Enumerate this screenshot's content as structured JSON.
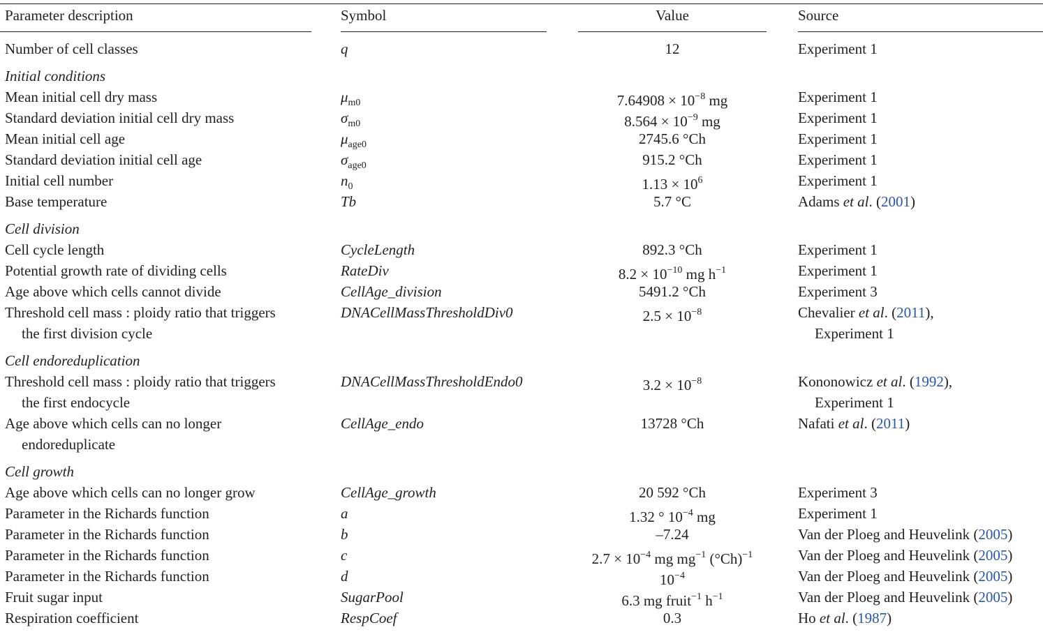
{
  "header": {
    "desc": "Parameter description",
    "symbol": "Symbol",
    "value": "Value",
    "source": "Source"
  },
  "sections": [
    {
      "title": "",
      "rows": [
        {
          "desc": [
            "Number of cell classes"
          ],
          "sym": "q",
          "sym_sub": "",
          "val": "12",
          "src": [
            [
              "Experiment 1",
              ""
            ]
          ]
        }
      ]
    },
    {
      "title": "Initial conditions",
      "rows": [
        {
          "desc": [
            "Mean initial cell dry mass"
          ],
          "sym": "μ",
          "sym_sub": "m0",
          "val": "7.64908 × 10^−8 mg",
          "src": [
            [
              "Experiment 1",
              ""
            ]
          ]
        },
        {
          "desc": [
            "Standard deviation initial cell dry mass"
          ],
          "sym": "σ",
          "sym_sub": "m0",
          "val": "8.564 × 10^−9 mg",
          "src": [
            [
              "Experiment 1",
              ""
            ]
          ]
        },
        {
          "desc": [
            "Mean initial cell age"
          ],
          "sym": "μ",
          "sym_sub": "age0",
          "val": "2745.6 °Ch",
          "src": [
            [
              "Experiment 1",
              ""
            ]
          ]
        },
        {
          "desc": [
            "Standard deviation initial cell age"
          ],
          "sym": "σ",
          "sym_sub": "age0",
          "val": "915.2 °Ch",
          "src": [
            [
              "Experiment 1",
              ""
            ]
          ]
        },
        {
          "desc": [
            "Initial cell number"
          ],
          "sym": "n",
          "sym_sub": "0",
          "val": "1.13 × 10^6",
          "src": [
            [
              "Experiment 1",
              ""
            ]
          ]
        },
        {
          "desc": [
            "Base temperature"
          ],
          "sym": "Tb",
          "sym_sub": "",
          "val": "5.7 °C",
          "src": [
            [
              "Adams et al. (",
              "2001",
              ")"
            ]
          ]
        }
      ]
    },
    {
      "title": "Cell division",
      "rows": [
        {
          "desc": [
            "Cell cycle length"
          ],
          "sym": "CycleLength",
          "sym_sub": "",
          "val": "892.3 °Ch",
          "src": [
            [
              "Experiment 1",
              ""
            ]
          ]
        },
        {
          "desc": [
            "Potential growth rate of dividing cells"
          ],
          "sym": "RateDiv",
          "sym_sub": "",
          "val": "8.2 × 10^−10 mg h^−1",
          "src": [
            [
              "Experiment 1",
              ""
            ]
          ]
        },
        {
          "desc": [
            "Age above which cells cannot divide"
          ],
          "sym": "CellAge_division",
          "sym_sub": "",
          "val": "5491.2 °Ch",
          "src": [
            [
              "Experiment 3",
              ""
            ]
          ]
        },
        {
          "desc": [
            "Threshold cell mass : ploidy ratio that triggers",
            "the first division cycle"
          ],
          "sym": "DNACellMassThresholdDiv0",
          "sym_sub": "",
          "val": "2.5 × 10^−8",
          "src": [
            [
              "Chevalier et al. (",
              "2011",
              "),"
            ],
            [
              "Experiment 1",
              ""
            ]
          ]
        }
      ]
    },
    {
      "title": "Cell endoreduplication",
      "rows": [
        {
          "desc": [
            "Threshold cell mass : ploidy ratio that triggers",
            "the first endocycle"
          ],
          "sym": "DNACellMassThresholdEndo0",
          "sym_sub": "",
          "val": "3.2 × 10^−8",
          "src": [
            [
              "Kononowicz et al. (",
              "1992",
              "),"
            ],
            [
              "Experiment 1",
              ""
            ]
          ]
        },
        {
          "desc": [
            "Age above which cells can no longer",
            "endoreduplicate"
          ],
          "sym": "CellAge_endo",
          "sym_sub": "",
          "val": "13728 °Ch",
          "src": [
            [
              "Nafati et al. (",
              "2011",
              ")"
            ]
          ]
        }
      ]
    },
    {
      "title": "Cell growth",
      "rows": [
        {
          "desc": [
            "Age above which cells can no longer grow"
          ],
          "sym": "CellAge_growth",
          "sym_sub": "",
          "val": "20 592 °Ch",
          "src": [
            [
              "Experiment 3",
              ""
            ]
          ]
        },
        {
          "desc": [
            "Parameter in the Richards function"
          ],
          "sym": "a",
          "sym_sub": "",
          "val": "1.32 ° 10^−4 mg",
          "src": [
            [
              "Experiment 1",
              ""
            ]
          ]
        },
        {
          "desc": [
            "Parameter in the Richards function"
          ],
          "sym": "b",
          "sym_sub": "",
          "val": "–7.24",
          "src": [
            [
              "Van der Ploeg and Heuvelink (",
              "2005",
              ")"
            ]
          ]
        },
        {
          "desc": [
            "Parameter in the Richards function"
          ],
          "sym": "c",
          "sym_sub": "",
          "val": "2.7 × 10^−4 mg mg^−1 (°Ch)^−1",
          "src": [
            [
              "Van der Ploeg and Heuvelink (",
              "2005",
              ")"
            ]
          ]
        },
        {
          "desc": [
            "Parameter in the Richards function"
          ],
          "sym": "d",
          "sym_sub": "",
          "val": "10^−4",
          "src": [
            [
              "Van der Ploeg and Heuvelink (",
              "2005",
              ")"
            ]
          ]
        },
        {
          "desc": [
            "Fruit sugar input"
          ],
          "sym": "SugarPool",
          "sym_sub": "",
          "val": "6.3 mg fruit^−1 h^−1",
          "src": [
            [
              "Van der Ploeg and Heuvelink (",
              "2005",
              ")"
            ]
          ]
        },
        {
          "desc": [
            "Respiration coefficient"
          ],
          "sym": "RespCoef",
          "sym_sub": "",
          "val": "0.3",
          "src": [
            [
              "Ho et al. (",
              "1987",
              ")"
            ]
          ]
        }
      ]
    }
  ]
}
